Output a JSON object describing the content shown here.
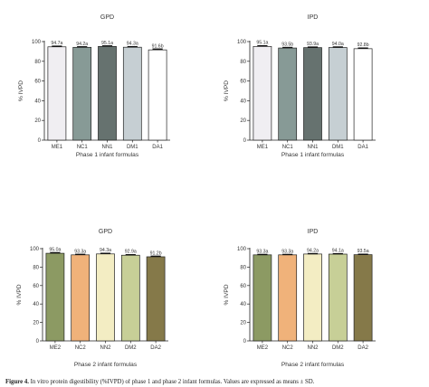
{
  "chart_data": [
    {
      "type": "bar",
      "title": "GPD",
      "xlabel": "Phase 1 infant formulas",
      "ylabel": "% IVPD",
      "ylim": [
        0,
        100
      ],
      "yticks": [
        0,
        20,
        40,
        60,
        80,
        100
      ],
      "grid": false,
      "categories": [
        "ME1",
        "NC1",
        "NN1",
        "DM1",
        "DA1"
      ],
      "values": [
        94.7,
        94.2,
        95.1,
        94.3,
        91.6
      ],
      "errors": [
        0.6,
        0.5,
        0.5,
        0.5,
        0.8
      ],
      "labels": [
        "94.7a",
        "94.2a",
        "95.1a",
        "94.3a",
        "91.6b"
      ],
      "colors": [
        "#f0eef2",
        "#879a96",
        "#66726f",
        "#c6cfd3",
        "#ffffff"
      ]
    },
    {
      "type": "bar",
      "title": "IPD",
      "xlabel": "Phase 1 infant formulas",
      "ylabel": "% IVPD",
      "ylim": [
        0,
        100
      ],
      "yticks": [
        0,
        20,
        40,
        60,
        80,
        100
      ],
      "grid": false,
      "categories": [
        "ME1",
        "NC1",
        "NN1",
        "DM1",
        "DA1"
      ],
      "values": [
        95.1,
        93.5,
        93.9,
        94.0,
        92.8
      ],
      "errors": [
        0.6,
        0.5,
        0.5,
        0.5,
        0.6
      ],
      "labels": [
        "95.1a",
        "93.5b",
        "93.9a",
        "94.0a",
        "92.8b"
      ],
      "colors": [
        "#f0eef2",
        "#879a96",
        "#66726f",
        "#c6cfd3",
        "#ffffff"
      ]
    },
    {
      "type": "bar",
      "title": "GPD",
      "xlabel": "Phase 2 infant formulas",
      "ylabel": "% IVPD",
      "ylim": [
        0,
        100
      ],
      "yticks": [
        0,
        20,
        40,
        60,
        80,
        100
      ],
      "grid": false,
      "categories": [
        "ME2",
        "NC2",
        "NN2",
        "DM2",
        "DA2"
      ],
      "values": [
        95.0,
        93.3,
        94.3,
        92.9,
        91.2
      ],
      "errors": [
        0.6,
        0.5,
        0.6,
        0.5,
        0.6
      ],
      "labels": [
        "95.0a",
        "93.3a",
        "94.3a",
        "92.9a",
        "91.2b"
      ],
      "colors": [
        "#8c9a63",
        "#f0b27a",
        "#f3edc3",
        "#c7cf97",
        "#857949"
      ]
    },
    {
      "type": "bar",
      "title": "IPD",
      "xlabel": "Phase 2 infant formulas",
      "ylabel": "% IVPD",
      "ylim": [
        0,
        100
      ],
      "yticks": [
        0,
        20,
        40,
        60,
        80,
        100
      ],
      "grid": false,
      "categories": [
        "ME2",
        "NC2",
        "NN2",
        "DM2",
        "DA2"
      ],
      "values": [
        93.3,
        93.3,
        94.2,
        94.1,
        93.5
      ],
      "errors": [
        0.4,
        0.4,
        0.4,
        0.4,
        0.4
      ],
      "labels": [
        "93.3a",
        "93.3a",
        "94.2a",
        "94.1a",
        "93.5a"
      ],
      "colors": [
        "#8c9a63",
        "#f0b27a",
        "#f3edc3",
        "#c7cf97",
        "#857949"
      ]
    }
  ],
  "caption": {
    "label": "Figure 4.",
    "text": " In vitro protein digestibility (%IVPD) of phase 1 and phase 2 infant formulas. Values are expressed as means ± SD."
  }
}
